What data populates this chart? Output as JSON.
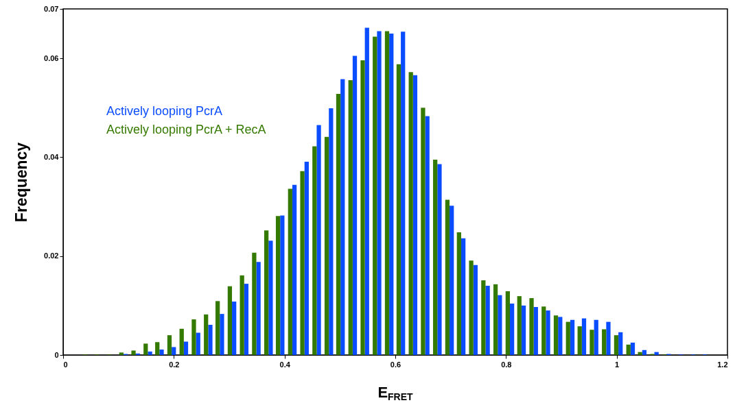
{
  "chart_data": {
    "type": "bar",
    "xlabel": "E$_{FRET}$",
    "ylabel": "Frequency",
    "x": [
      0.044,
      0.065,
      0.087,
      0.109,
      0.131,
      0.153,
      0.174,
      0.196,
      0.218,
      0.24,
      0.262,
      0.283,
      0.305,
      0.327,
      0.349,
      0.371,
      0.392,
      0.414,
      0.436,
      0.458,
      0.48,
      0.501,
      0.523,
      0.545,
      0.567,
      0.589,
      0.61,
      0.632,
      0.654,
      0.676,
      0.698,
      0.719,
      0.741,
      0.763,
      0.785,
      0.807,
      0.828,
      0.85,
      0.872,
      0.894,
      0.916,
      0.937,
      0.959,
      0.981,
      1.003,
      1.025,
      1.046,
      1.068,
      1.09,
      1.112,
      1.134,
      1.155
    ],
    "series": [
      {
        "name": "Actively looping PcrA",
        "color": "#0a4cff",
        "values": [
          0,
          0,
          0,
          0.0002,
          0.0003,
          0.0007,
          0.0011,
          0.0016,
          0.0027,
          0.0045,
          0.0061,
          0.0083,
          0.0108,
          0.0144,
          0.0188,
          0.0231,
          0.0282,
          0.0344,
          0.0391,
          0.0465,
          0.0499,
          0.0558,
          0.0605,
          0.0662,
          0.0655,
          0.065,
          0.0654,
          0.0566,
          0.0483,
          0.0386,
          0.0302,
          0.0236,
          0.0182,
          0.014,
          0.0121,
          0.0104,
          0.01,
          0.0097,
          0.009,
          0.0077,
          0.0071,
          0.0074,
          0.0071,
          0.0067,
          0.0046,
          0.0025,
          0.001,
          0.0006,
          0.0002,
          0.0001,
          0.0001,
          0.0001
        ]
      },
      {
        "name": "Actively looping PcrA + RecA",
        "color": "#357a00",
        "values": [
          0.0001,
          0.0001,
          0.0001,
          0.0005,
          0.0009,
          0.0023,
          0.0026,
          0.004,
          0.0053,
          0.0072,
          0.0082,
          0.0109,
          0.0139,
          0.0161,
          0.0207,
          0.0252,
          0.0281,
          0.0336,
          0.0372,
          0.0422,
          0.0441,
          0.0528,
          0.0556,
          0.0596,
          0.0644,
          0.0655,
          0.0588,
          0.0572,
          0.05,
          0.0395,
          0.0314,
          0.0248,
          0.0191,
          0.0151,
          0.0143,
          0.0129,
          0.0119,
          0.0115,
          0.0098,
          0.008,
          0.0067,
          0.0058,
          0.0051,
          0.0052,
          0.004,
          0.0021,
          0.0006,
          0.0002,
          0.0001,
          0,
          0,
          0
        ]
      }
    ],
    "xlim": [
      0,
      1.2
    ],
    "xticks": [
      0,
      0.2,
      0.4,
      0.6,
      0.8,
      1,
      1.2
    ],
    "ylim": [
      0,
      0.07
    ],
    "yticks": [
      0,
      0.02,
      0.04,
      0.06,
      0.07
    ],
    "legend": "left"
  }
}
